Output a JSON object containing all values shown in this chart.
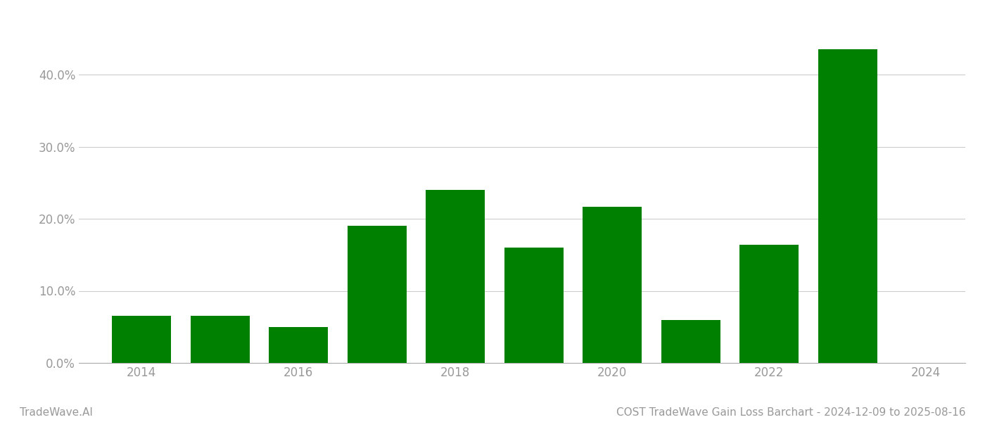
{
  "years": [
    2014,
    2015,
    2016,
    2017,
    2018,
    2019,
    2020,
    2021,
    2022,
    2023
  ],
  "values": [
    0.065,
    0.065,
    0.05,
    0.19,
    0.24,
    0.16,
    0.217,
    0.06,
    0.164,
    0.435
  ],
  "bar_color": "#008000",
  "background_color": "#ffffff",
  "grid_color": "#cccccc",
  "axis_color": "#aaaaaa",
  "tick_color": "#999999",
  "yticks": [
    0.0,
    0.1,
    0.2,
    0.3,
    0.4
  ],
  "ytick_labels": [
    "0.0%",
    "10.0%",
    "20.0%",
    "30.0%",
    "40.0%"
  ],
  "xtick_labels": [
    "2014",
    "2016",
    "2018",
    "2020",
    "2022",
    "2024"
  ],
  "xtick_positions": [
    2014,
    2016,
    2018,
    2020,
    2022,
    2024
  ],
  "footer_left": "TradeWave.AI",
  "footer_right": "COST TradeWave Gain Loss Barchart - 2024-12-09 to 2025-08-16",
  "footer_color": "#999999",
  "footer_fontsize": 11,
  "bar_width": 0.75,
  "xlim": [
    2013.2,
    2024.5
  ],
  "ylim": [
    0.0,
    0.48
  ]
}
